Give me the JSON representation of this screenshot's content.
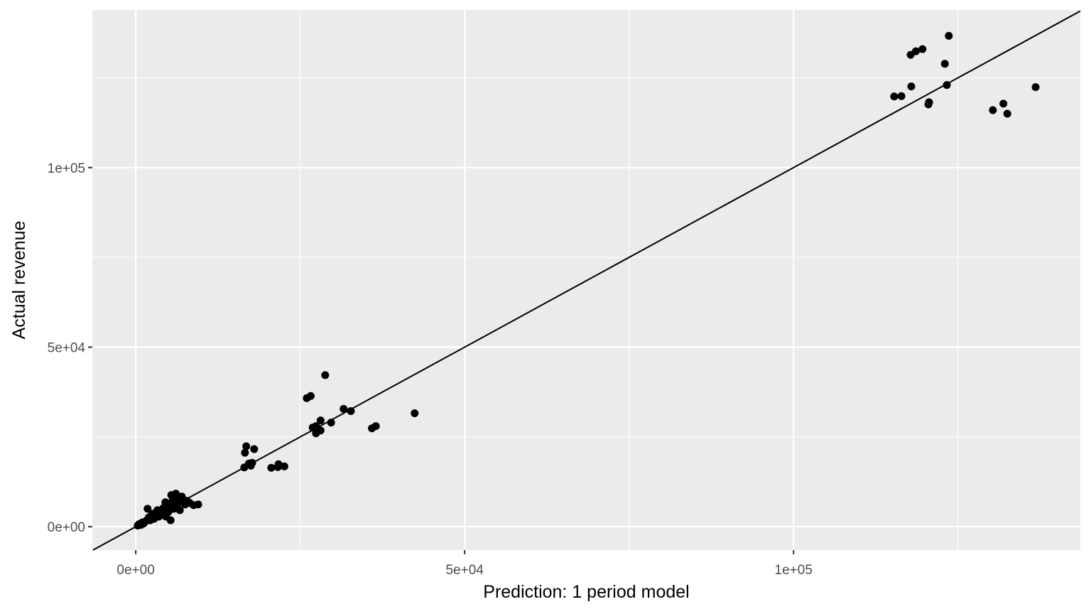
{
  "chart_data": {
    "type": "scatter",
    "xlabel": "Prediction: 1 period model",
    "ylabel": "Actual revenue",
    "xlim": [
      -6600,
      143600
    ],
    "ylim": [
      -6500,
      143900
    ],
    "x_ticks": [
      {
        "value": 0,
        "label": "0e+00"
      },
      {
        "value": 50000,
        "label": "5e+04"
      },
      {
        "value": 100000,
        "label": "1e+05"
      }
    ],
    "y_ticks": [
      {
        "value": 0,
        "label": "0e+00"
      },
      {
        "value": 50000,
        "label": "5e+04"
      },
      {
        "value": 100000,
        "label": "1e+05"
      }
    ],
    "grid": true,
    "reference_line": {
      "type": "identity",
      "slope": 1,
      "intercept": 0
    },
    "colors": {
      "panel": "#ebebeb",
      "grid": "#ffffff",
      "points": "#000000",
      "line": "#000000"
    },
    "series": [
      {
        "points": [
          [
            300,
            300
          ],
          [
            500,
            700
          ],
          [
            800,
            500
          ],
          [
            1000,
            1200
          ],
          [
            1200,
            900
          ],
          [
            1500,
            1500
          ],
          [
            1800,
            2000
          ],
          [
            2000,
            2600
          ],
          [
            2200,
            1800
          ],
          [
            2500,
            3000
          ],
          [
            2800,
            2200
          ],
          [
            3000,
            3600
          ],
          [
            3200,
            4200
          ],
          [
            3500,
            2800
          ],
          [
            3600,
            3800
          ],
          [
            4000,
            4600
          ],
          [
            4200,
            5200
          ],
          [
            4300,
            3200
          ],
          [
            4500,
            6800
          ],
          [
            4700,
            5600
          ],
          [
            5000,
            4200
          ],
          [
            5200,
            6400
          ],
          [
            5300,
            1800
          ],
          [
            5400,
            8800
          ],
          [
            5600,
            7200
          ],
          [
            5800,
            5000
          ],
          [
            6000,
            8000
          ],
          [
            6100,
            9200
          ],
          [
            6300,
            6000
          ],
          [
            6500,
            7600
          ],
          [
            6700,
            4600
          ],
          [
            7000,
            8400
          ],
          [
            7200,
            6800
          ],
          [
            7500,
            6200
          ],
          [
            7800,
            7200
          ],
          [
            8200,
            6600
          ],
          [
            8800,
            6000
          ],
          [
            9500,
            6200
          ],
          [
            1800,
            5000
          ],
          [
            2500,
            3600
          ],
          [
            3300,
            4600
          ],
          [
            4600,
            2800
          ],
          [
            5000,
            5800
          ],
          [
            16500,
            16500
          ],
          [
            16600,
            20600
          ],
          [
            16800,
            22400
          ],
          [
            17200,
            17600
          ],
          [
            17500,
            17000
          ],
          [
            17700,
            17800
          ],
          [
            18000,
            21600
          ],
          [
            20600,
            16400
          ],
          [
            21600,
            16600
          ],
          [
            21700,
            17400
          ],
          [
            22600,
            16800
          ],
          [
            26000,
            35800
          ],
          [
            26600,
            36400
          ],
          [
            26900,
            27600
          ],
          [
            27400,
            28000
          ],
          [
            27400,
            26000
          ],
          [
            28100,
            29600
          ],
          [
            28100,
            26800
          ],
          [
            28800,
            42200
          ],
          [
            29700,
            29000
          ],
          [
            31600,
            32800
          ],
          [
            32700,
            32200
          ],
          [
            35900,
            27400
          ],
          [
            36500,
            28000
          ],
          [
            42400,
            31600
          ],
          [
            115300,
            119800
          ],
          [
            116400,
            119900
          ],
          [
            117800,
            131400
          ],
          [
            117900,
            122600
          ],
          [
            118600,
            132400
          ],
          [
            119600,
            133000
          ],
          [
            120500,
            117600
          ],
          [
            120600,
            118200
          ],
          [
            123000,
            128900
          ],
          [
            123300,
            123000
          ],
          [
            123600,
            136700
          ],
          [
            130300,
            116000
          ],
          [
            131900,
            117800
          ],
          [
            132500,
            115000
          ],
          [
            136800,
            122400
          ]
        ]
      }
    ]
  }
}
